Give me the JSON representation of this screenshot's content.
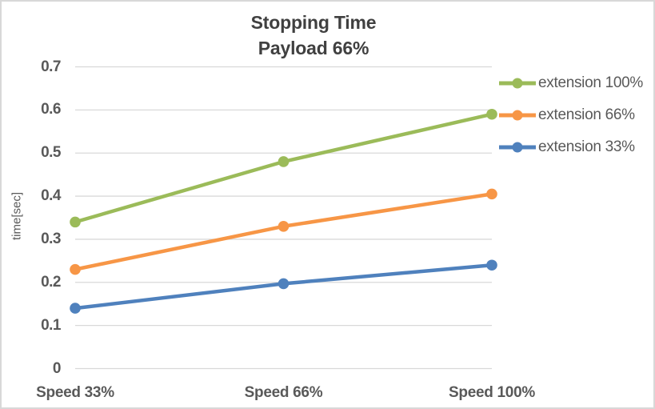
{
  "chart_data": {
    "type": "line",
    "title": "Stopping Time",
    "subtitle": "Payload 66%",
    "ylabel": "time[sec]",
    "categories": [
      "Speed 33%",
      "Speed 66%",
      "Speed 100%"
    ],
    "series": [
      {
        "name": "extension 100%",
        "color": "#9BBB59",
        "values": [
          0.34,
          0.48,
          0.59
        ]
      },
      {
        "name": "extension 66%",
        "color": "#F79646",
        "values": [
          0.23,
          0.33,
          0.405
        ]
      },
      {
        "name": "extension 33%",
        "color": "#4F81BD",
        "values": [
          0.14,
          0.197,
          0.24
        ]
      }
    ],
    "ylim": [
      0,
      0.7
    ],
    "ytick_labels": [
      "0",
      "0.1",
      "0.2",
      "0.3",
      "0.4",
      "0.5",
      "0.6",
      "0.7"
    ],
    "grid": true,
    "legend_position": "right",
    "marker": "circle"
  },
  "colors": {
    "grid": "#D9D9D9",
    "tick_text": "#595959",
    "title_text": "#404040",
    "border": "#D8D8D8",
    "background": "#FFFFFF"
  }
}
